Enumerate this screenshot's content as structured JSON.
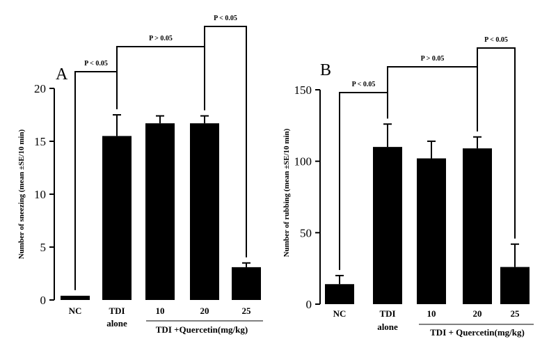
{
  "chart_data": [
    {
      "panel": "A",
      "type": "bar",
      "ylabel": "Number of sneezing (mean ±SE/10 min)",
      "xlabel": "",
      "ylim": [
        0,
        20
      ],
      "yticks": [
        "0",
        "5",
        "10",
        "15",
        "20"
      ],
      "categories": [
        "NC",
        "TDI alone",
        "10",
        "20",
        "25"
      ],
      "values": [
        0.4,
        15.5,
        16.7,
        16.7,
        3.1
      ],
      "errors": [
        0,
        2.0,
        0.7,
        0.7,
        0.4
      ],
      "group_label": "TDI +Quercetin(mg/kg)",
      "annotations": [
        {
          "from": 0,
          "to": 1,
          "text": "P < 0.05"
        },
        {
          "from": 1,
          "to": 3,
          "text": "P > 0.05"
        },
        {
          "from": 3,
          "to": 4,
          "text": "P < 0.05"
        }
      ]
    },
    {
      "panel": "B",
      "type": "bar",
      "ylabel": "Number of rubbing (mean ±SE/10 min)",
      "xlabel": "",
      "ylim": [
        0,
        150
      ],
      "yticks": [
        "0",
        "50",
        "100",
        "150"
      ],
      "categories": [
        "NC",
        "TDI alone",
        "10",
        "20",
        "25"
      ],
      "values": [
        14,
        110,
        102,
        109,
        26
      ],
      "errors": [
        6,
        16,
        12,
        8,
        16
      ],
      "group_label": "TDI + Quercetin(mg/kg)",
      "annotations": [
        {
          "from": 0,
          "to": 1,
          "text": "P < 0.05"
        },
        {
          "from": 1,
          "to": 3,
          "text": "P > 0.05"
        },
        {
          "from": 3,
          "to": 4,
          "text": "P < 0.05"
        }
      ]
    }
  ]
}
